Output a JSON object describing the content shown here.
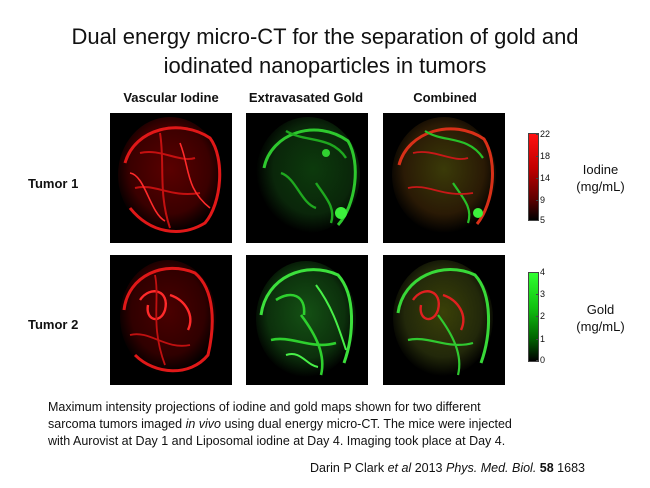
{
  "title": {
    "line1": "Dual energy micro-CT for the separation of gold and",
    "line2": "iodinated nanoparticles in tumors"
  },
  "columns": [
    "Vascular Iodine",
    "Extravasated Gold",
    "Combined"
  ],
  "rows": [
    "Tumor 1",
    "Tumor 2"
  ],
  "colorbars": {
    "iodine": {
      "ticks": [
        "22",
        "18",
        "14",
        "9",
        "5"
      ],
      "unit_line1": "Iodine",
      "unit_line2": "(mg/mL)",
      "color": "#e01010"
    },
    "gold": {
      "ticks": [
        "4",
        "3",
        "2",
        "1",
        "0"
      ],
      "unit_line1": "Gold",
      "unit_line2": "(mg/mL)",
      "color": "#20d020"
    }
  },
  "caption": {
    "line1": "Maximum intensity projections of iodine and gold maps shown for two different",
    "line2_pre": "sarcoma tumors  imaged ",
    "line2_em": "in vivo",
    "line2_post": " using dual energy micro-CT. The mice were injected",
    "line3": "with Aurovist at Day 1 and Liposomal iodine at Day 4. Imaging took place at Day 4."
  },
  "citation": {
    "authors": "Darin P Clark ",
    "etal": "et al",
    "year": " 2013 ",
    "journal": "Phys. Med. Biol.",
    "volume": "58",
    "page": " 1683"
  }
}
